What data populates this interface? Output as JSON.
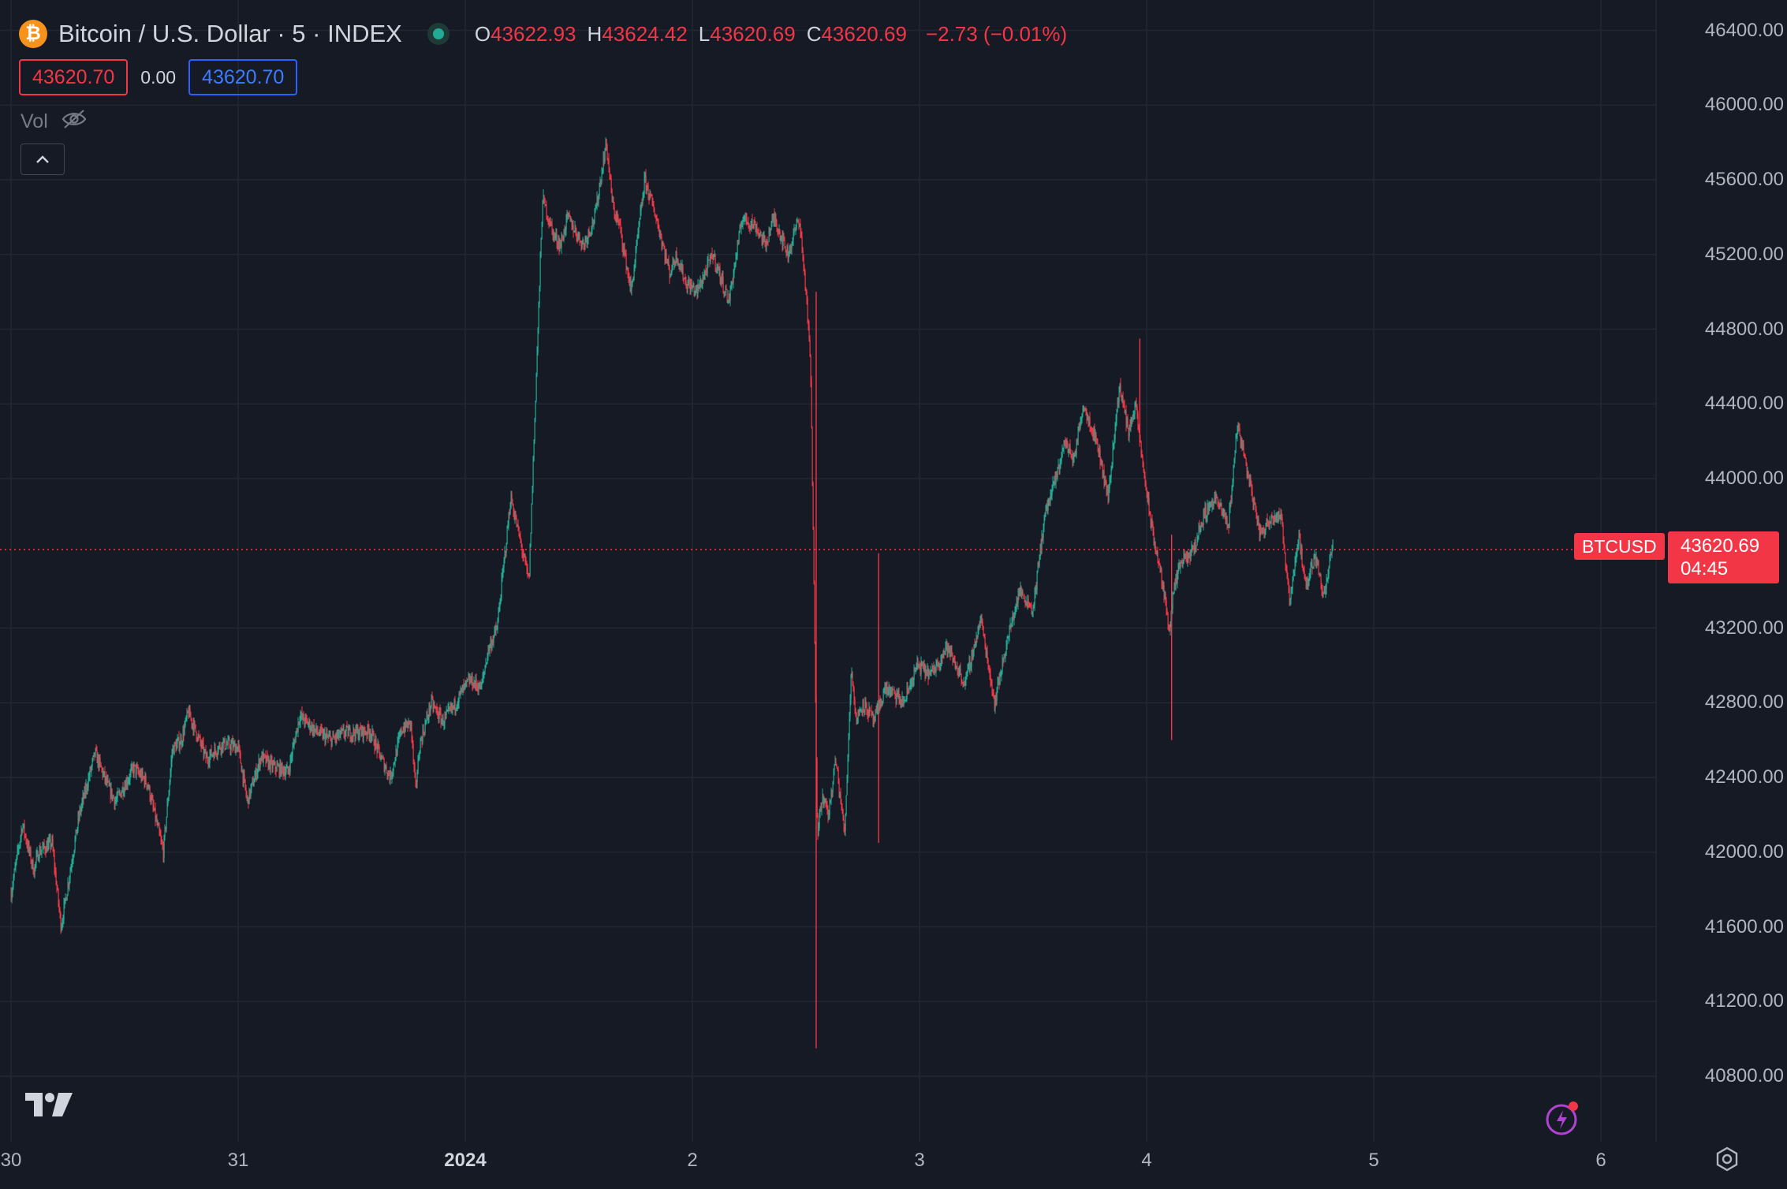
{
  "header": {
    "coin_glyph": "₿",
    "title": "Bitcoin / U.S. Dollar · 5 · INDEX",
    "ohlc": {
      "o_label": "O",
      "o_value": "43622.93",
      "h_label": "H",
      "h_value": "43624.42",
      "l_label": "L",
      "l_value": "43620.69",
      "c_label": "C",
      "c_value": "43620.69",
      "change": "−2.73 (−0.01%)"
    },
    "bid": "43620.70",
    "spread": "0.00",
    "ask": "43620.70",
    "vol_label": "Vol"
  },
  "price_axis": {
    "labels": [
      "46400.00",
      "46000.00",
      "45600.00",
      "45200.00",
      "44800.00",
      "44400.00",
      "44000.00",
      "43200.00",
      "42800.00",
      "42400.00",
      "42000.00",
      "41600.00",
      "41200.00",
      "40800.00"
    ]
  },
  "time_axis": {
    "labels": [
      "30",
      "31",
      "2024",
      "2",
      "3",
      "4",
      "5",
      "6"
    ]
  },
  "last_price": {
    "symbol": "BTCUSD",
    "price": "43620.69",
    "countdown": "04:45"
  },
  "colors": {
    "background": "#161a25",
    "up": "#22ab94",
    "down": "#f23645",
    "grid": "#232733",
    "accent_blue": "#2962ff",
    "flash_purple": "#b043d1"
  },
  "icons": [
    "bitcoin-icon",
    "eye-off-icon",
    "chevron-up-icon",
    "tradingview-logo-icon",
    "flash-icon",
    "gear-icon"
  ],
  "chart_data": {
    "type": "candlestick",
    "symbol": "BTCUSD",
    "interval": "5",
    "x_ticks": [
      "30",
      "31",
      "2024",
      "2",
      "3",
      "4",
      "5",
      "6"
    ],
    "ylim": [
      40700,
      46500
    ],
    "y_ticks": [
      46400,
      46000,
      45600,
      45200,
      44800,
      44400,
      44000,
      43200,
      42800,
      42400,
      42000,
      41600,
      41200,
      40800
    ],
    "last_price": 43620.69,
    "grid": true,
    "series": [
      {
        "x": [
          0.0,
          0.05,
          0.1,
          0.12,
          0.18,
          0.22,
          0.3,
          0.37,
          0.43,
          0.46,
          0.54,
          0.6,
          0.67,
          0.71,
          0.75,
          0.78,
          0.86,
          0.93,
          1.0,
          1.04,
          1.1,
          1.15,
          1.22,
          1.27,
          1.35,
          1.41,
          1.47,
          1.52,
          1.58,
          1.63,
          1.67,
          1.72,
          1.76,
          1.78,
          1.8,
          1.85,
          1.9,
          1.95,
          1.98,
          2.02,
          2.07,
          2.1,
          2.14,
          2.2,
          2.28,
          2.34,
          2.39,
          2.42,
          2.45,
          2.52,
          2.57,
          2.62,
          2.65,
          2.68,
          2.73,
          2.79,
          2.84,
          2.9,
          2.93,
          2.97,
          3.02,
          3.09,
          3.16,
          3.22,
          3.28,
          3.32,
          3.36,
          3.42,
          3.47,
          3.5,
          3.52,
          3.53,
          3.54,
          3.55,
          3.57,
          3.6,
          3.63,
          3.67,
          3.7,
          3.72,
          3.75,
          3.8,
          3.85,
          3.93,
          3.99,
          4.05,
          4.12,
          4.2,
          4.27,
          4.33,
          4.38,
          4.44,
          4.5,
          4.55,
          4.6,
          4.64,
          4.68,
          4.72,
          4.78,
          4.83,
          4.88,
          4.92,
          4.95,
          4.98,
          5.02,
          5.06,
          5.1,
          5.12,
          5.15,
          5.2,
          5.25,
          5.3,
          5.36,
          5.4,
          5.45,
          5.5,
          5.55,
          5.59,
          5.63,
          5.67,
          5.7,
          5.74,
          5.78,
          5.82
        ],
        "values": [
          41780,
          42150,
          41900,
          42000,
          42050,
          41600,
          42200,
          42530,
          42340,
          42270,
          42450,
          42370,
          42000,
          42550,
          42600,
          42750,
          42500,
          42580,
          42560,
          42270,
          42510,
          42460,
          42430,
          42730,
          42640,
          42600,
          42640,
          42640,
          42650,
          42500,
          42400,
          42660,
          42690,
          42330,
          42580,
          42800,
          42700,
          42780,
          42850,
          42920,
          42880,
          43080,
          43200,
          43900,
          43450,
          45500,
          45300,
          45250,
          45400,
          45250,
          45400,
          45800,
          45450,
          45350,
          45000,
          45600,
          45400,
          45100,
          45200,
          45050,
          45000,
          45200,
          44950,
          45400,
          45350,
          45250,
          45400,
          45200,
          45400,
          45000,
          44600,
          43800,
          43000,
          42100,
          42300,
          42200,
          42500,
          42100,
          43000,
          42700,
          42800,
          42700,
          42880,
          42800,
          43000,
          42950,
          43100,
          42900,
          43250,
          42800,
          43100,
          43400,
          43300,
          43800,
          44000,
          44200,
          44100,
          44400,
          44200,
          43900,
          44500,
          44250,
          44400,
          44100,
          43750,
          43500,
          43200,
          43400,
          43550,
          43600,
          43800,
          43900,
          43750,
          44300,
          44000,
          43700,
          43800,
          43800,
          43350,
          43700,
          43400,
          43600,
          43380,
          43650
        ]
      }
    ]
  }
}
